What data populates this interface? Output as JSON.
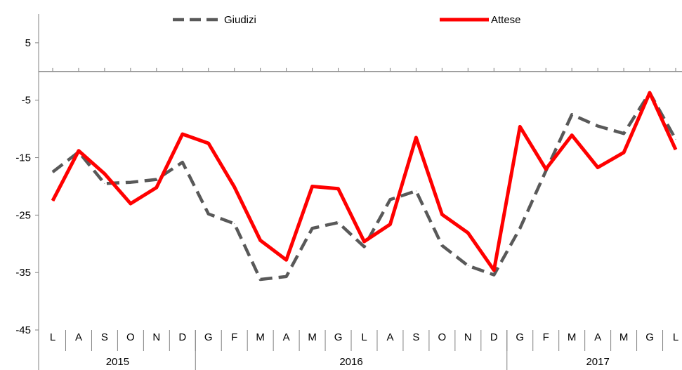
{
  "chart_data": {
    "type": "line",
    "title": "",
    "xlabel": "",
    "ylabel": "",
    "ylim": [
      -45,
      10
    ],
    "yticks": [
      5,
      -5,
      -15,
      -25,
      -35,
      -45
    ],
    "zero_line": 0,
    "categories": [
      "L",
      "A",
      "S",
      "O",
      "N",
      "D",
      "G",
      "F",
      "M",
      "A",
      "M",
      "G",
      "L",
      "A",
      "S",
      "O",
      "N",
      "D",
      "G",
      "F",
      "M",
      "A",
      "M",
      "G",
      "L"
    ],
    "year_groups": [
      {
        "label": "2015",
        "span": 6
      },
      {
        "label": "2016",
        "span": 12
      },
      {
        "label": "2017",
        "span": 7
      }
    ],
    "legend": {
      "position": "top"
    },
    "series": [
      {
        "name": "Giudizi",
        "color": "#595959",
        "style": "dashed",
        "values": [
          -17.5,
          -14,
          -19.5,
          -19.3,
          -18.8,
          -15.8,
          -24.8,
          -26.5,
          -36.2,
          -35.7,
          -27.3,
          -26.3,
          -30.5,
          -22.3,
          -20.8,
          -30.3,
          -33.8,
          -35.4,
          -27.3,
          -17.3,
          -7.5,
          -9.5,
          -10.8,
          -3.7,
          -11.8
        ]
      },
      {
        "name": "Attese",
        "color": "#ff0000",
        "style": "solid",
        "values": [
          -22.5,
          -13.8,
          -17.8,
          -23,
          -20.2,
          -10.9,
          -12.5,
          -20.1,
          -29.4,
          -32.8,
          -20,
          -20.4,
          -29.6,
          -26.6,
          -11.5,
          -24.9,
          -28.1,
          -34.6,
          -9.6,
          -17,
          -11.1,
          -16.7,
          -14.1,
          -3.7,
          -13.6
        ]
      }
    ]
  }
}
